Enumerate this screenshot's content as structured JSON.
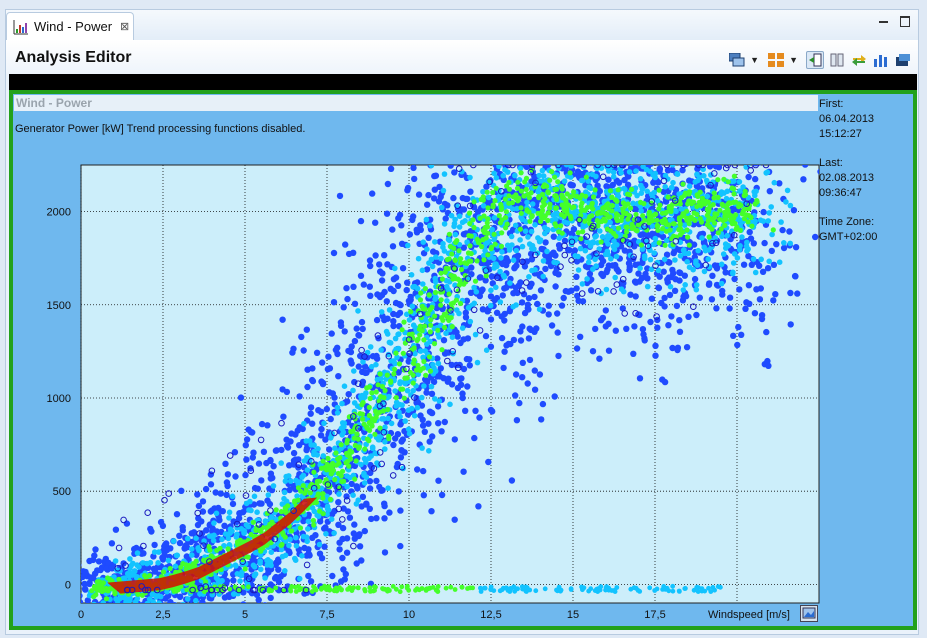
{
  "tab": {
    "title": "Wind - Power",
    "close_glyph": "⊠"
  },
  "editor": {
    "title": "Analysis Editor"
  },
  "toolbar": {
    "items": [
      "windows-icon",
      "grid-icon",
      "move-icon",
      "columns-icon",
      "refresh-icon",
      "chart-icon",
      "export-icon"
    ]
  },
  "chart": {
    "title": "Wind - Power",
    "subtitle": "Generator Power [kW] Trend processing functions disabled.",
    "info": {
      "first_label": "First:",
      "first_date": "06.04.2013",
      "first_time": "15:12:27",
      "last_label": "Last:",
      "last_date": "02.08.2013",
      "last_time": "09:36:47",
      "tz_label": "Time Zone:",
      "tz_value": "GMT+02:00"
    }
  },
  "chart_data": {
    "type": "scatter",
    "title": "Wind - Power",
    "xlabel": "Windspeed [m/s]",
    "ylabel": "",
    "xlim": [
      0,
      22.5
    ],
    "ylim": [
      -100,
      2250
    ],
    "x_ticks": [
      "0",
      "2,5",
      "5",
      "7,5",
      "10",
      "12,5",
      "15",
      "17,5"
    ],
    "x_tick_values": [
      0,
      2.5,
      5,
      7.5,
      10,
      12.5,
      15,
      17.5
    ],
    "y_ticks": [
      "0",
      "500",
      "1000",
      "1500",
      "2000"
    ],
    "y_tick_values": [
      0,
      500,
      1000,
      1500,
      2000
    ],
    "grid": true,
    "power_curve": {
      "x": [
        0.5,
        2.5,
        3.5,
        4.5,
        5.5,
        6.5,
        7.5,
        8.5,
        9.5,
        10.5,
        11.5,
        12.5,
        13.5,
        14.5,
        15.5,
        17.5,
        20
      ],
      "y": [
        -20,
        10,
        60,
        150,
        240,
        380,
        560,
        800,
        1050,
        1350,
        1700,
        1950,
        2080,
        2060,
        2000,
        1980,
        2020
      ]
    },
    "colors": {
      "low_density": "#1f4bff",
      "mid_density": "#12c3ff",
      "high_density": "#44ff2a",
      "peak_density": "#d50d00",
      "plot_background": "#cceefa",
      "panel_background": "#6fb8ee",
      "panel_border": "#23a11c"
    }
  }
}
